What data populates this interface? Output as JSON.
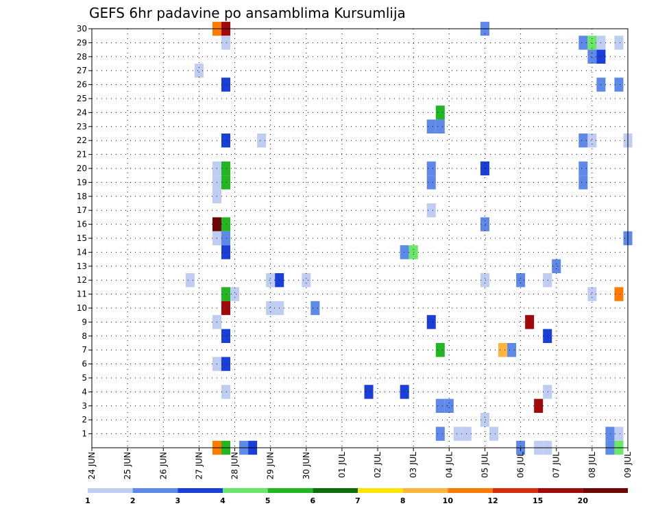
{
  "chart_data": {
    "type": "heatmap",
    "title": "GEFS 6hr padavine po ansamblima Kursumlija",
    "x_tick_labels": [
      "24 JUN",
      "25 JUN",
      "26 JUN",
      "27 JUN",
      "28 JUN",
      "29 JUN",
      "30 JUN",
      "01 JUL",
      "02 JUL",
      "03 JUL",
      "04 JUL",
      "05 JUL",
      "06 JUL",
      "07 JUL",
      "08 JUL",
      "09 JUL"
    ],
    "x_range_hours": [
      0,
      360
    ],
    "time_step_hours": 6,
    "y_tick_labels": [
      1,
      2,
      3,
      4,
      5,
      6,
      7,
      8,
      9,
      10,
      11,
      12,
      13,
      14,
      15,
      16,
      17,
      18,
      19,
      20,
      21,
      22,
      23,
      24,
      25,
      26,
      27,
      28,
      29,
      30
    ],
    "y_range": [
      0,
      30
    ],
    "grid": true,
    "colorbar": {
      "labels": [
        "1",
        "2",
        "3",
        "4",
        "5",
        "6",
        "7",
        "8",
        "10",
        "12",
        "15",
        "20"
      ],
      "colors": [
        "#bfcdf2",
        "#5f89e8",
        "#1a3fd9",
        "#6ae66a",
        "#22b622",
        "#0b6e0b",
        "#ffe600",
        "#ffb43c",
        "#ff7a00",
        "#d92c0a",
        "#a00a0a",
        "#6e0505"
      ]
    },
    "cells": [
      {
        "member": 30,
        "hour": 84,
        "class": 9
      },
      {
        "member": 30,
        "hour": 90,
        "class": 11
      },
      {
        "member": 30,
        "hour": 264,
        "class": 2
      },
      {
        "member": 29,
        "hour": 90,
        "class": 1
      },
      {
        "member": 29,
        "hour": 330,
        "class": 2
      },
      {
        "member": 29,
        "hour": 336,
        "class": 4
      },
      {
        "member": 29,
        "hour": 342,
        "class": 1
      },
      {
        "member": 29,
        "hour": 354,
        "class": 1
      },
      {
        "member": 28,
        "hour": 336,
        "class": 2
      },
      {
        "member": 28,
        "hour": 342,
        "class": 3
      },
      {
        "member": 27,
        "hour": 72,
        "class": 1
      },
      {
        "member": 26,
        "hour": 90,
        "class": 3
      },
      {
        "member": 26,
        "hour": 342,
        "class": 2
      },
      {
        "member": 26,
        "hour": 354,
        "class": 2
      },
      {
        "member": 24,
        "hour": 234,
        "class": 5
      },
      {
        "member": 23,
        "hour": 228,
        "class": 2
      },
      {
        "member": 23,
        "hour": 234,
        "class": 2
      },
      {
        "member": 22,
        "hour": 90,
        "class": 3
      },
      {
        "member": 22,
        "hour": 114,
        "class": 1
      },
      {
        "member": 22,
        "hour": 330,
        "class": 2
      },
      {
        "member": 22,
        "hour": 336,
        "class": 1
      },
      {
        "member": 22,
        "hour": 360,
        "class": 1
      },
      {
        "member": 20,
        "hour": 84,
        "class": 1
      },
      {
        "member": 20,
        "hour": 90,
        "class": 5
      },
      {
        "member": 20,
        "hour": 228,
        "class": 2
      },
      {
        "member": 20,
        "hour": 264,
        "class": 3
      },
      {
        "member": 20,
        "hour": 330,
        "class": 2
      },
      {
        "member": 19,
        "hour": 84,
        "class": 1
      },
      {
        "member": 19,
        "hour": 90,
        "class": 5
      },
      {
        "member": 19,
        "hour": 228,
        "class": 2
      },
      {
        "member": 19,
        "hour": 330,
        "class": 2
      },
      {
        "member": 18,
        "hour": 84,
        "class": 1
      },
      {
        "member": 17,
        "hour": 228,
        "class": 1
      },
      {
        "member": 16,
        "hour": 84,
        "class": 12
      },
      {
        "member": 16,
        "hour": 90,
        "class": 5
      },
      {
        "member": 16,
        "hour": 264,
        "class": 2
      },
      {
        "member": 15,
        "hour": 84,
        "class": 1
      },
      {
        "member": 15,
        "hour": 90,
        "class": 2
      },
      {
        "member": 15,
        "hour": 360,
        "class": 2
      },
      {
        "member": 14,
        "hour": 90,
        "class": 3
      },
      {
        "member": 14,
        "hour": 210,
        "class": 2
      },
      {
        "member": 14,
        "hour": 216,
        "class": 4
      },
      {
        "member": 13,
        "hour": 312,
        "class": 2
      },
      {
        "member": 12,
        "hour": 66,
        "class": 1
      },
      {
        "member": 12,
        "hour": 120,
        "class": 1
      },
      {
        "member": 12,
        "hour": 126,
        "class": 3
      },
      {
        "member": 12,
        "hour": 144,
        "class": 1
      },
      {
        "member": 12,
        "hour": 264,
        "class": 1
      },
      {
        "member": 12,
        "hour": 288,
        "class": 2
      },
      {
        "member": 12,
        "hour": 306,
        "class": 1
      },
      {
        "member": 11,
        "hour": 90,
        "class": 5
      },
      {
        "member": 11,
        "hour": 96,
        "class": 1
      },
      {
        "member": 11,
        "hour": 336,
        "class": 1
      },
      {
        "member": 11,
        "hour": 354,
        "class": 9
      },
      {
        "member": 10,
        "hour": 90,
        "class": 11
      },
      {
        "member": 10,
        "hour": 120,
        "class": 1
      },
      {
        "member": 10,
        "hour": 126,
        "class": 1
      },
      {
        "member": 10,
        "hour": 150,
        "class": 2
      },
      {
        "member": 9,
        "hour": 84,
        "class": 1
      },
      {
        "member": 9,
        "hour": 228,
        "class": 3
      },
      {
        "member": 9,
        "hour": 294,
        "class": 11
      },
      {
        "member": 8,
        "hour": 90,
        "class": 3
      },
      {
        "member": 8,
        "hour": 306,
        "class": 3
      },
      {
        "member": 7,
        "hour": 234,
        "class": 5
      },
      {
        "member": 7,
        "hour": 276,
        "class": 8
      },
      {
        "member": 7,
        "hour": 282,
        "class": 2
      },
      {
        "member": 6,
        "hour": 84,
        "class": 1
      },
      {
        "member": 6,
        "hour": 90,
        "class": 3
      },
      {
        "member": 4,
        "hour": 90,
        "class": 1
      },
      {
        "member": 4,
        "hour": 186,
        "class": 3
      },
      {
        "member": 4,
        "hour": 210,
        "class": 3
      },
      {
        "member": 4,
        "hour": 306,
        "class": 1
      },
      {
        "member": 3,
        "hour": 234,
        "class": 2
      },
      {
        "member": 3,
        "hour": 240,
        "class": 2
      },
      {
        "member": 3,
        "hour": 300,
        "class": 11
      },
      {
        "member": 2,
        "hour": 264,
        "class": 1
      },
      {
        "member": 1,
        "hour": 234,
        "class": 2
      },
      {
        "member": 1,
        "hour": 246,
        "class": 1
      },
      {
        "member": 1,
        "hour": 252,
        "class": 1
      },
      {
        "member": 1,
        "hour": 270,
        "class": 1
      },
      {
        "member": 1,
        "hour": 348,
        "class": 2
      },
      {
        "member": 1,
        "hour": 354,
        "class": 1
      },
      {
        "member": 0,
        "hour": 84,
        "class": 9
      },
      {
        "member": 0,
        "hour": 90,
        "class": 5
      },
      {
        "member": 0,
        "hour": 102,
        "class": 2
      },
      {
        "member": 0,
        "hour": 108,
        "class": 3
      },
      {
        "member": 0,
        "hour": 288,
        "class": 2
      },
      {
        "member": 0,
        "hour": 300,
        "class": 1
      },
      {
        "member": 0,
        "hour": 306,
        "class": 1
      },
      {
        "member": 0,
        "hour": 348,
        "class": 2
      },
      {
        "member": 0,
        "hour": 354,
        "class": 4
      }
    ]
  }
}
